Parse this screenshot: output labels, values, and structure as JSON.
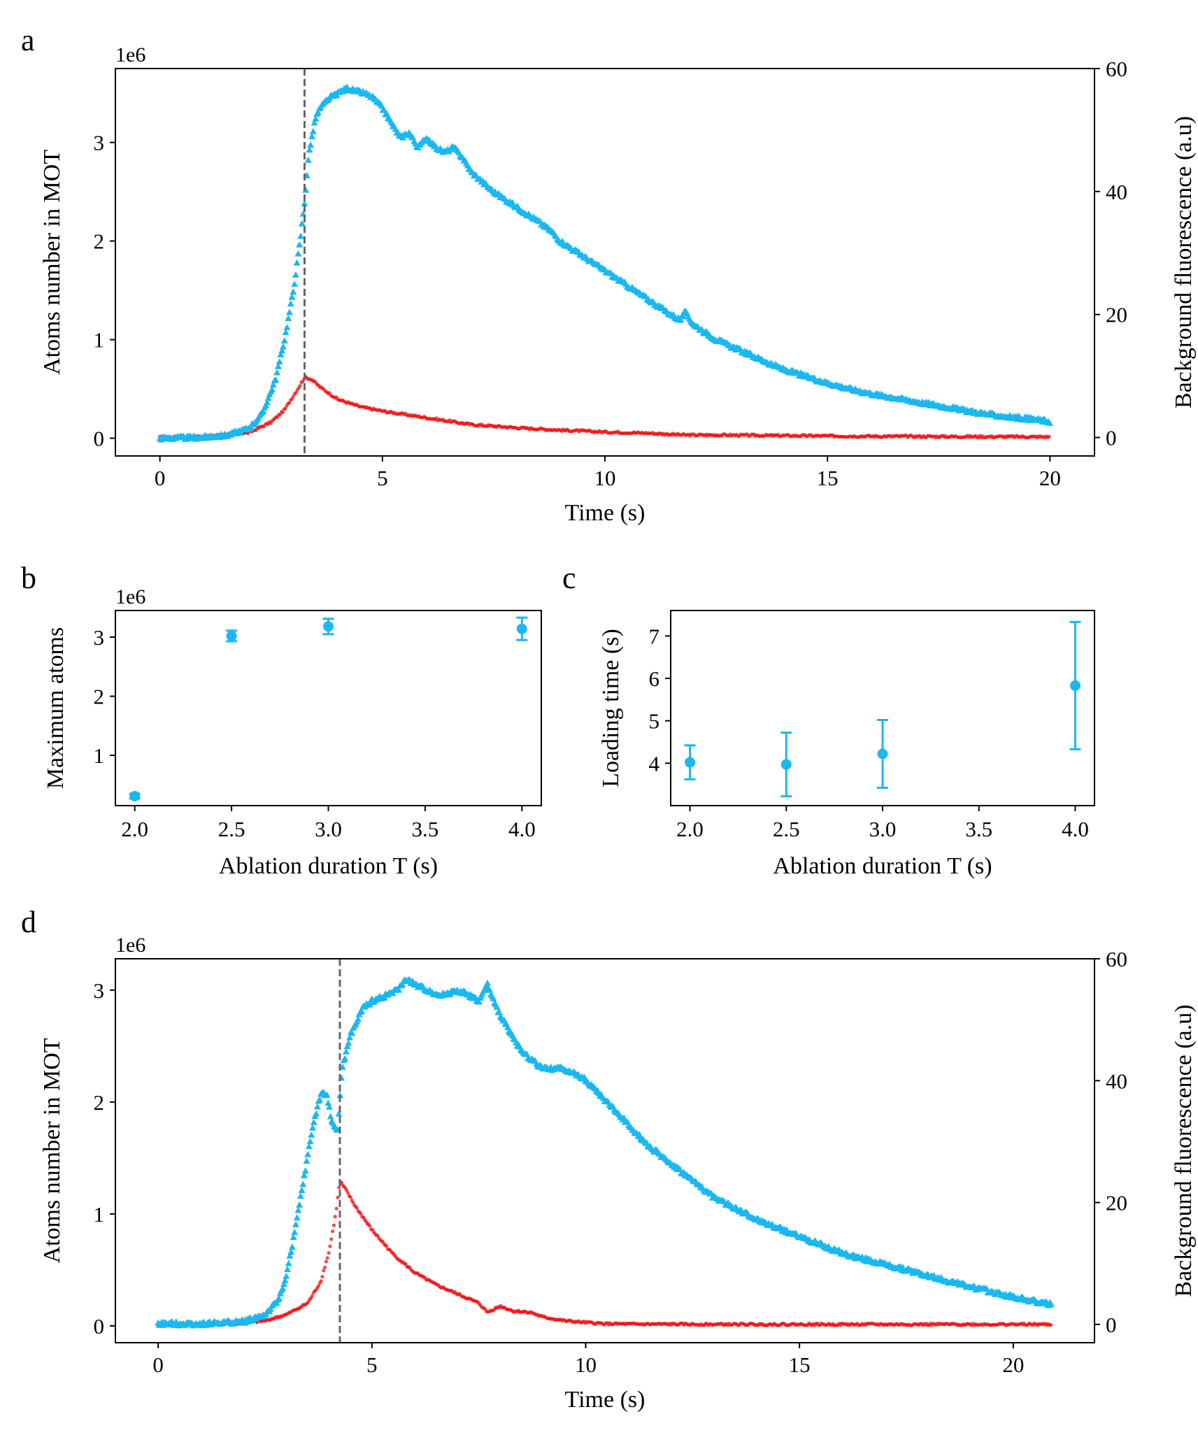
{
  "colors": {
    "atoms": "#1ab8ef",
    "background": "#ee1111",
    "marker_line": "#666666",
    "axis": "#000000"
  },
  "chart_data": [
    {
      "panel": "a",
      "type": "scatter",
      "xlabel": "Time (s)",
      "ylabel": "Atoms number in MOT",
      "y2label": "Background fluorescence (a.u)",
      "y_multiplier": "1e6",
      "xlim": [
        -1,
        21
      ],
      "ylim": [
        -0.18,
        3.75
      ],
      "y2lim": [
        -3,
        60
      ],
      "xticks": [
        0,
        5,
        10,
        15,
        20
      ],
      "yticks": [
        0,
        1,
        2,
        3
      ],
      "y2ticks": [
        0,
        20,
        40,
        60
      ],
      "vline_x": 3.25,
      "series": [
        {
          "name": "Atoms number",
          "axis": "left",
          "marker": "triangle",
          "color": "#1ab8ef",
          "x": [
            0,
            1,
            1.5,
            2,
            2.3,
            2.6,
            2.8,
            3.0,
            3.15,
            3.25,
            3.35,
            3.5,
            3.6,
            3.8,
            4.0,
            4.2,
            4.4,
            4.6,
            4.8,
            5.0,
            5.2,
            5.4,
            5.6,
            5.8,
            6.0,
            6.2,
            6.4,
            6.6,
            6.8,
            7.0,
            7.5,
            8.0,
            8.5,
            8.8,
            9.0,
            9.5,
            10.0,
            10.5,
            11.0,
            11.5,
            11.7,
            11.8,
            12.0,
            12.5,
            13.0,
            13.5,
            14.0,
            14.5,
            15.0,
            15.5,
            16.0,
            16.5,
            17.0,
            17.5,
            18.0,
            18.5,
            19.0,
            19.5,
            20.0
          ],
          "y": [
            0,
            0.01,
            0.03,
            0.1,
            0.25,
            0.6,
            1.0,
            1.5,
            2.0,
            2.4,
            2.9,
            3.25,
            3.35,
            3.45,
            3.5,
            3.55,
            3.52,
            3.5,
            3.45,
            3.35,
            3.2,
            3.05,
            3.1,
            2.95,
            3.05,
            2.95,
            2.9,
            2.95,
            2.85,
            2.7,
            2.5,
            2.35,
            2.2,
            2.1,
            2.0,
            1.85,
            1.7,
            1.55,
            1.4,
            1.25,
            1.2,
            1.28,
            1.15,
            1.0,
            0.9,
            0.8,
            0.7,
            0.63,
            0.56,
            0.5,
            0.45,
            0.41,
            0.37,
            0.33,
            0.29,
            0.25,
            0.22,
            0.2,
            0.17
          ]
        },
        {
          "name": "Background fluorescence",
          "axis": "right",
          "marker": "circle",
          "color": "#ee1111",
          "x": [
            0,
            1,
            2,
            2.5,
            2.8,
            3.0,
            3.15,
            3.25,
            3.4,
            3.6,
            4.0,
            4.5,
            5.0,
            6.0,
            7.0,
            8.0,
            9.0,
            10.0,
            11.0,
            11.8,
            12.5,
            14.0,
            16.0,
            18.0,
            20.0
          ],
          "y": [
            0,
            0.2,
            0.8,
            2.5,
            4.5,
            6.8,
            8.5,
            9.8,
            9.5,
            8.2,
            6.2,
            5.0,
            4.3,
            3.2,
            2.1,
            1.6,
            1.2,
            0.9,
            0.7,
            0.4,
            0.4,
            0.3,
            0.2,
            0.15,
            0.1
          ]
        }
      ]
    },
    {
      "panel": "b",
      "type": "errorbar",
      "xlabel": "Ablation duration T (s)",
      "ylabel": "Maximum atoms",
      "y_multiplier": "1e6",
      "xlim": [
        1.9,
        4.1
      ],
      "ylim": [
        0.15,
        3.45
      ],
      "xticks": [
        "2.0",
        "2.5",
        "3.0",
        "3.5",
        "4.0"
      ],
      "yticks": [
        1,
        2,
        3
      ],
      "x": [
        2.0,
        2.5,
        3.0,
        4.0
      ],
      "values": [
        0.31,
        3.02,
        3.18,
        3.14
      ],
      "errors": [
        0.04,
        0.09,
        0.13,
        0.19
      ],
      "color": "#1ab8ef"
    },
    {
      "panel": "c",
      "type": "errorbar",
      "xlabel": "Ablation duration T (s)",
      "ylabel": "Loading time (s)",
      "xlim": [
        1.9,
        4.1
      ],
      "ylim": [
        3.0,
        7.6
      ],
      "xticks": [
        "2.0",
        "2.5",
        "3.0",
        "3.5",
        "4.0"
      ],
      "yticks": [
        4,
        5,
        6,
        7
      ],
      "x": [
        2.0,
        2.5,
        3.0,
        4.0
      ],
      "values": [
        4.02,
        3.97,
        4.22,
        5.83
      ],
      "errors": [
        0.4,
        0.75,
        0.8,
        1.5
      ],
      "color": "#1ab8ef"
    },
    {
      "panel": "d",
      "type": "scatter",
      "xlabel": "Time (s)",
      "ylabel": "Atoms number in MOT",
      "y2label": "Background fluorescence (a.u)",
      "y_multiplier": "1e6",
      "xlim": [
        -1,
        21.9
      ],
      "ylim": [
        -0.15,
        3.28
      ],
      "y2lim": [
        -3,
        60
      ],
      "xticks": [
        0,
        5,
        10,
        15,
        20
      ],
      "yticks": [
        0,
        1,
        2,
        3
      ],
      "y2ticks": [
        0,
        20,
        40,
        60
      ],
      "vline_x": 4.25,
      "series": [
        {
          "name": "Atoms number",
          "axis": "left",
          "marker": "triangle",
          "color": "#1ab8ef",
          "x": [
            0,
            1,
            2,
            2.5,
            2.8,
            3.0,
            3.2,
            3.4,
            3.6,
            3.75,
            3.85,
            3.95,
            4.05,
            4.15,
            4.2,
            4.3,
            4.5,
            4.8,
            5.0,
            5.3,
            5.6,
            5.8,
            6.0,
            6.3,
            6.6,
            7.0,
            7.3,
            7.5,
            7.7,
            7.9,
            8.2,
            8.5,
            9.0,
            9.5,
            10.0,
            10.5,
            11.0,
            11.5,
            12.0,
            12.5,
            13.0,
            14.0,
            15.0,
            16.0,
            17.0,
            18.0,
            19.0,
            20.0,
            20.5,
            20.9
          ],
          "y": [
            0.02,
            0.02,
            0.04,
            0.1,
            0.22,
            0.45,
            0.85,
            1.3,
            1.75,
            2.0,
            2.1,
            2.05,
            1.85,
            1.75,
            1.75,
            2.3,
            2.6,
            2.85,
            2.9,
            2.95,
            3.0,
            3.1,
            3.05,
            3.0,
            2.95,
            3.0,
            2.95,
            2.9,
            3.05,
            2.85,
            2.65,
            2.45,
            2.3,
            2.3,
            2.2,
            2.0,
            1.8,
            1.6,
            1.45,
            1.3,
            1.15,
            0.95,
            0.8,
            0.65,
            0.55,
            0.45,
            0.35,
            0.26,
            0.22,
            0.19
          ]
        },
        {
          "name": "Background fluorescence",
          "axis": "right",
          "marker": "circle",
          "color": "#ee1111",
          "x": [
            0,
            1,
            2,
            2.5,
            3.0,
            3.5,
            3.8,
            4.0,
            4.15,
            4.25,
            4.4,
            4.6,
            5.0,
            5.5,
            6.0,
            6.5,
            7.0,
            7.5,
            7.7,
            8.0,
            8.3,
            8.7,
            9.0,
            9.5,
            10.0,
            10.5,
            11.0,
            13.0,
            16.0,
            20.0,
            20.9
          ],
          "y": [
            0,
            0,
            0.2,
            0.6,
            1.6,
            3.5,
            7.0,
            12.0,
            18.0,
            23.5,
            22.0,
            19.5,
            15.5,
            11.5,
            8.5,
            6.5,
            5.0,
            3.5,
            2.0,
            3.0,
            2.2,
            2.0,
            1.2,
            0.6,
            0.3,
            0.1,
            0.05,
            0,
            0,
            0,
            0
          ]
        }
      ]
    }
  ]
}
